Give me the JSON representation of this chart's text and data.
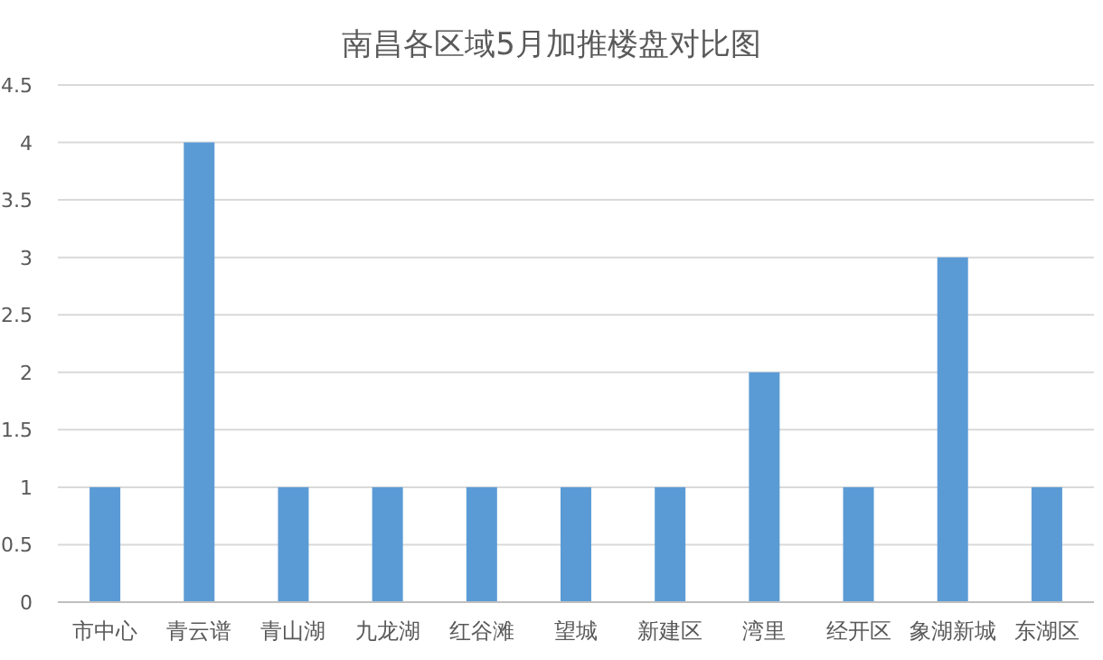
{
  "chart_data": {
    "type": "bar",
    "title": "南昌各区域5月加推楼盘对比图",
    "categories": [
      "市中心",
      "青云谱",
      "青山湖",
      "九龙湖",
      "红谷滩",
      "望城",
      "新建区",
      "湾里",
      "经开区",
      "象湖新城",
      "东湖区"
    ],
    "values": [
      1,
      4,
      1,
      1,
      1,
      1,
      1,
      2,
      1,
      3,
      1
    ],
    "color": "#5b9bd5",
    "ylim": [
      0,
      4.5
    ],
    "yticks": [
      0,
      0.5,
      1,
      1.5,
      2,
      2.5,
      3,
      3.5,
      4,
      4.5
    ],
    "grid": "y"
  }
}
